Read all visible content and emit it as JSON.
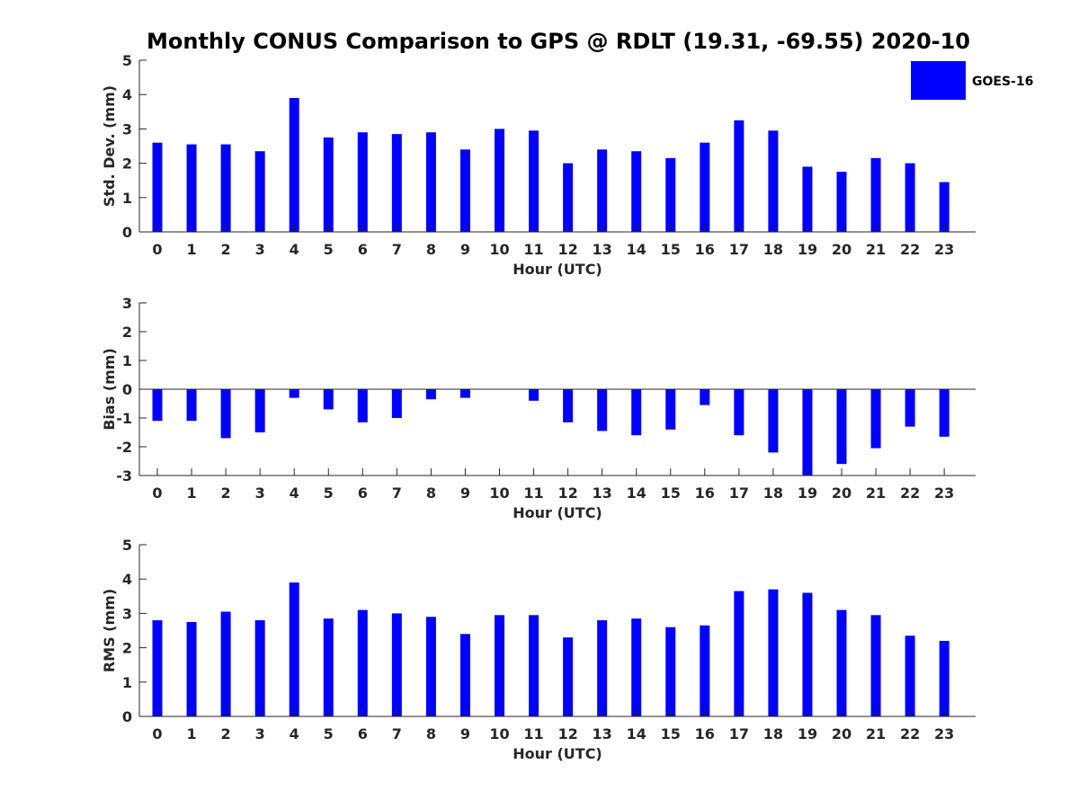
{
  "chart_data": {
    "type": "bar",
    "title": "Monthly CONUS Comparison to GPS @ RDLT (19.31, -69.55) 2020-10",
    "legend": {
      "placement": "top-right",
      "entries": [
        "GOES-16"
      ]
    },
    "colors": {
      "bar": "#0000ff",
      "axis": "#262626"
    },
    "categories": [
      "0",
      "1",
      "2",
      "3",
      "4",
      "5",
      "6",
      "7",
      "8",
      "9",
      "10",
      "11",
      "12",
      "13",
      "14",
      "15",
      "16",
      "17",
      "18",
      "19",
      "20",
      "21",
      "22",
      "23"
    ],
    "panels": [
      {
        "id": "stddev",
        "xlabel": "Hour (UTC)",
        "ylabel": "Std. Dev. (mm)",
        "ylim": [
          0,
          5
        ],
        "yticks": [
          "0",
          "1",
          "2",
          "3",
          "4",
          "5"
        ],
        "series": [
          {
            "name": "GOES-16",
            "values": [
              2.6,
              2.55,
              2.55,
              2.35,
              3.9,
              2.75,
              2.9,
              2.85,
              2.9,
              2.4,
              3.0,
              2.95,
              2.0,
              2.4,
              2.35,
              2.15,
              2.6,
              3.25,
              2.95,
              1.9,
              1.75,
              2.15,
              2.0,
              1.45
            ]
          }
        ]
      },
      {
        "id": "bias",
        "xlabel": "Hour (UTC)",
        "ylabel": "Bias (mm)",
        "ylim": [
          -3,
          3
        ],
        "yticks": [
          "-3",
          "-2",
          "-1",
          "0",
          "1",
          "2",
          "3"
        ],
        "series": [
          {
            "name": "GOES-16",
            "values": [
              -1.1,
              -1.1,
              -1.7,
              -1.5,
              -0.3,
              -0.7,
              -1.15,
              -1.0,
              -0.35,
              -0.3,
              0.0,
              -0.4,
              -1.15,
              -1.45,
              -1.6,
              -1.4,
              -0.55,
              -1.6,
              -2.2,
              -3.0,
              -2.6,
              -2.05,
              -1.3,
              -1.65
            ]
          }
        ]
      },
      {
        "id": "rms",
        "xlabel": "Hour (UTC)",
        "ylabel": "RMS (mm)",
        "ylim": [
          0,
          5
        ],
        "yticks": [
          "0",
          "1",
          "2",
          "3",
          "4",
          "5"
        ],
        "series": [
          {
            "name": "GOES-16",
            "values": [
              2.8,
              2.75,
              3.05,
              2.8,
              3.9,
              2.85,
              3.1,
              3.0,
              2.9,
              2.4,
              2.95,
              2.95,
              2.3,
              2.8,
              2.85,
              2.6,
              2.65,
              3.65,
              3.7,
              3.6,
              3.1,
              2.95,
              2.35,
              2.2
            ]
          }
        ]
      }
    ]
  }
}
